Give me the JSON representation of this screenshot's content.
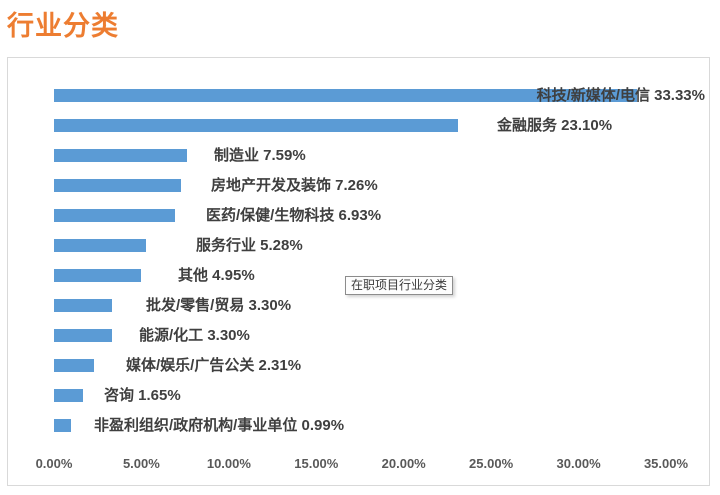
{
  "page": {
    "title": "行业分类"
  },
  "tooltip": {
    "text": "在职项目行业分类"
  },
  "colors": {
    "title_orange": "#ED7D31",
    "bar_blue": "#5B9BD5",
    "label_text": "#3F3F3F",
    "axis_text": "#595959",
    "chart_border": "#D9D9D9"
  },
  "chart_data": {
    "type": "bar",
    "orientation": "horizontal",
    "title": "行业分类",
    "hover_tooltip": "在职项目行业分类",
    "xlabel": "",
    "ylabel": "",
    "xlim": [
      0,
      35
    ],
    "grid": false,
    "x_ticks": [
      "0.00%",
      "5.00%",
      "10.00%",
      "15.00%",
      "20.00%",
      "25.00%",
      "30.00%",
      "35.00%"
    ],
    "categories": [
      "科技/新媒体/电信",
      "金融服务",
      "制造业",
      "房地产开发及装饰",
      "医药/保健/生物科技",
      "服务行业",
      "其他",
      "批发/零售/贸易",
      "能源/化工",
      "媒体/娱乐/广告公关",
      "咨询",
      "非盈利组织/政府机构/事业单位"
    ],
    "values": [
      33.33,
      23.1,
      7.59,
      7.26,
      6.93,
      5.28,
      4.95,
      3.3,
      3.3,
      2.31,
      1.65,
      0.99
    ],
    "rows": [
      {
        "category": "科技/新媒体/电信",
        "value": 33.33,
        "label": "科技/新媒体/电信 33.33%"
      },
      {
        "category": "金融服务",
        "value": 23.1,
        "label": "金融服务 23.10%"
      },
      {
        "category": "制造业",
        "value": 7.59,
        "label": "制造业 7.59%"
      },
      {
        "category": "房地产开发及装饰",
        "value": 7.26,
        "label": "房地产开发及装饰 7.26%"
      },
      {
        "category": "医药/保健/生物科技",
        "value": 6.93,
        "label": "医药/保健/生物科技 6.93%"
      },
      {
        "category": "服务行业",
        "value": 5.28,
        "label": "服务行业 5.28%"
      },
      {
        "category": "其他",
        "value": 4.95,
        "label": "其他 4.95%"
      },
      {
        "category": "批发/零售/贸易",
        "value": 3.3,
        "label": "批发/零售/贸易 3.30%"
      },
      {
        "category": "能源/化工",
        "value": 3.3,
        "label": "能源/化工 3.30%"
      },
      {
        "category": "媒体/娱乐/广告公关",
        "value": 2.31,
        "label": "媒体/娱乐/广告公关 2.31%"
      },
      {
        "category": "咨询",
        "value": 1.65,
        "label": "咨询 1.65%"
      },
      {
        "category": "非盈利组织/政府机构/事业单位",
        "value": 0.99,
        "label": "非盈利组织/政府机构/事业单位 0.99%"
      }
    ]
  }
}
